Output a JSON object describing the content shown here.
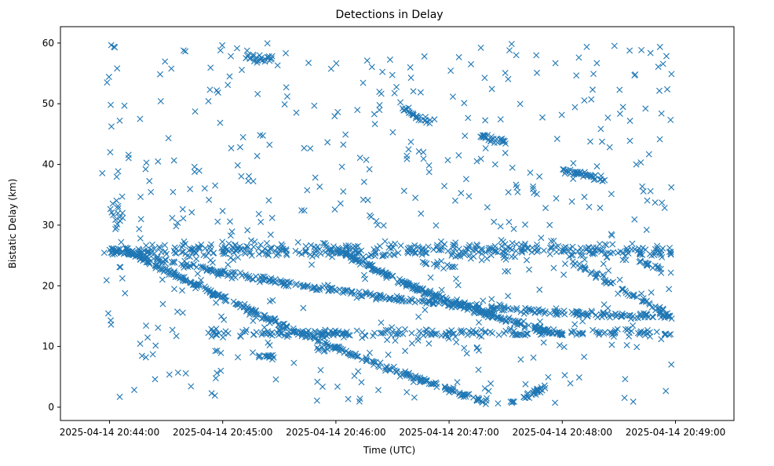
{
  "chart_data": {
    "type": "scatter",
    "title": "Detections in Delay",
    "xlabel": "Time (UTC)",
    "ylabel": "Bistatic Delay (km)",
    "marker": "x",
    "color": "#1f77b4",
    "xlim_seconds": [
      -26,
      331
    ],
    "ylim": [
      -2.2,
      62.7
    ],
    "xticks": [
      {
        "t": 0,
        "label": "2025-04-14 20:44:00"
      },
      {
        "t": 60,
        "label": "2025-04-14 20:45:00"
      },
      {
        "t": 120,
        "label": "2025-04-14 20:46:00"
      },
      {
        "t": 180,
        "label": "2025-04-14 20:47:00"
      },
      {
        "t": 240,
        "label": "2025-04-14 20:48:00"
      },
      {
        "t": 300,
        "label": "2025-04-14 20:49:00"
      }
    ],
    "yticks": [
      0,
      10,
      20,
      30,
      40,
      50,
      60
    ],
    "tracks": [
      {
        "name": "descending-a",
        "t_start": 0,
        "t_end": 298,
        "y_start": 26.0,
        "y_end": 15.0,
        "y_mid_offset": -2.5,
        "count": 380
      },
      {
        "name": "descending-b",
        "t_start": 8,
        "t_end": 200,
        "y_start": 26.0,
        "y_end": 0.8,
        "y_mid_offset": -1.5,
        "count": 320
      },
      {
        "name": "ascending-c",
        "t_start": 212,
        "t_end": 232,
        "y_start": 0.5,
        "y_end": 3.5,
        "y_mid_offset": 0,
        "count": 30
      },
      {
        "name": "descending-d",
        "t_start": 120,
        "t_end": 240,
        "y_start": 26.0,
        "y_end": 12.0,
        "y_mid_offset": -1.5,
        "count": 260
      },
      {
        "name": "descending-e",
        "t_start": 240,
        "t_end": 262,
        "y_start": 39.0,
        "y_end": 37.5,
        "y_mid_offset": 0,
        "count": 40
      },
      {
        "name": "descending-f",
        "t_start": 245,
        "t_end": 298,
        "y_start": 24.0,
        "y_end": 15.0,
        "y_mid_offset": 0,
        "count": 60
      },
      {
        "name": "descending-g",
        "t_start": 155,
        "t_end": 170,
        "y_start": 49.0,
        "y_end": 47.0,
        "y_mid_offset": 0,
        "count": 25
      },
      {
        "name": "descending-h",
        "t_start": 195,
        "t_end": 210,
        "y_start": 45.0,
        "y_end": 43.5,
        "y_mid_offset": 0,
        "count": 25
      },
      {
        "name": "descending-i",
        "t_start": 280,
        "t_end": 298,
        "y_start": 24.0,
        "y_end": 22.0,
        "y_mid_offset": 0,
        "count": 20
      }
    ],
    "bands": [
      {
        "name": "band-26",
        "t_start": 0,
        "t_end": 298,
        "y": 25.8,
        "spread": 0.6,
        "count": 420
      },
      {
        "name": "band-12",
        "t_start": 52,
        "t_end": 298,
        "y": 12.2,
        "spread": 0.3,
        "count": 220
      },
      {
        "name": "band-57",
        "t_start": 72,
        "t_end": 87,
        "y": 57.5,
        "spread": 0.3,
        "count": 25
      },
      {
        "name": "band-8",
        "t_start": 77,
        "t_end": 87,
        "y": 8.3,
        "spread": 0.2,
        "count": 15
      },
      {
        "name": "band-9",
        "t_start": 110,
        "t_end": 120,
        "y": 9.5,
        "spread": 0.2,
        "count": 10
      },
      {
        "name": "band-23",
        "t_start": 165,
        "t_end": 185,
        "y": 23.5,
        "spread": 0.3,
        "count": 15
      },
      {
        "name": "band-cluster",
        "t_start": 0,
        "t_end": 8,
        "y": 31.5,
        "spread": 1.2,
        "count": 15
      }
    ],
    "noise": {
      "t_start": -4,
      "t_end": 298,
      "y_min": 0.5,
      "y_max": 60,
      "count": 520
    },
    "seed": 12345
  }
}
